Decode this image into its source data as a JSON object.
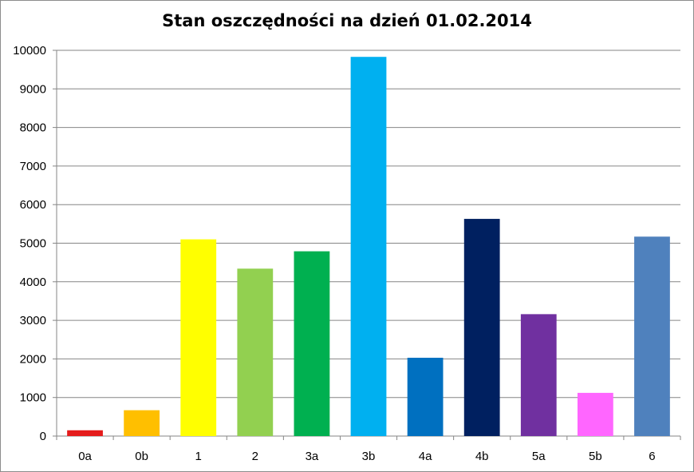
{
  "chart_data": {
    "type": "bar",
    "title": "Stan oszczędności na dzień 01.02.2014",
    "xlabel": "",
    "ylabel": "",
    "categories": [
      "0a",
      "0b",
      "1",
      "2",
      "3a",
      "3b",
      "4a",
      "4b",
      "5a",
      "5b",
      "6"
    ],
    "values": [
      150,
      670,
      5100,
      4340,
      4790,
      9830,
      2030,
      5630,
      3160,
      1120,
      5170
    ],
    "colors": [
      "#e51c1c",
      "#ffbf00",
      "#ffff00",
      "#92d050",
      "#00b050",
      "#00b0f0",
      "#0070c0",
      "#002060",
      "#7030a0",
      "#ff66ff",
      "#4f81bd"
    ],
    "ylim": [
      0,
      10000
    ],
    "yticks": [
      0,
      1000,
      2000,
      3000,
      4000,
      5000,
      6000,
      7000,
      8000,
      9000,
      10000
    ],
    "grid": true,
    "legend": "none"
  }
}
